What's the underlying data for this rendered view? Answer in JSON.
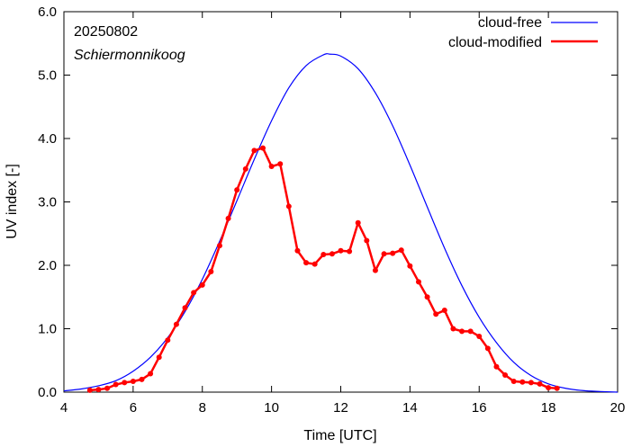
{
  "chart_data": {
    "type": "line",
    "xlabel": "Time  [UTC]",
    "ylabel": "UV index  [-]",
    "xlim": [
      4,
      20
    ],
    "ylim": [
      0,
      6
    ],
    "xticks": [
      4,
      6,
      8,
      10,
      12,
      14,
      16,
      18,
      20
    ],
    "yticks": [
      0,
      1,
      2,
      3,
      4,
      5,
      6
    ],
    "xtick_labels": [
      "4",
      "6",
      "8",
      "10",
      "12",
      "14",
      "16",
      "18",
      "20"
    ],
    "ytick_labels": [
      "0.0",
      "1.0",
      "2.0",
      "3.0",
      "4.0",
      "5.0",
      "6.0"
    ],
    "grid": false,
    "legend_position": "top-right",
    "annotations": {
      "date": "20250802",
      "location": "Schiermonnikoog"
    },
    "series": [
      {
        "name": "cloud-free",
        "color": "#0000ff",
        "marker": false,
        "x": [
          4.0,
          4.5,
          5.0,
          5.5,
          6.0,
          6.5,
          7.0,
          7.5,
          8.0,
          8.5,
          9.0,
          9.5,
          10.0,
          10.5,
          11.0,
          11.5,
          11.7,
          12.0,
          12.5,
          13.0,
          13.5,
          14.0,
          14.5,
          15.0,
          15.5,
          16.0,
          16.5,
          17.0,
          17.5,
          18.0,
          18.5,
          19.0,
          19.5,
          20.0
        ],
        "y": [
          0.02,
          0.05,
          0.1,
          0.18,
          0.33,
          0.55,
          0.86,
          1.27,
          1.78,
          2.38,
          3.02,
          3.67,
          4.28,
          4.8,
          5.15,
          5.32,
          5.33,
          5.3,
          5.1,
          4.72,
          4.2,
          3.58,
          2.92,
          2.27,
          1.68,
          1.18,
          0.78,
          0.47,
          0.26,
          0.13,
          0.06,
          0.025,
          0.01,
          0.0
        ]
      },
      {
        "name": "cloud-modified",
        "color": "#ff0000",
        "marker": true,
        "x": [
          4.75,
          5.0,
          5.25,
          5.5,
          5.75,
          6.0,
          6.25,
          6.5,
          6.75,
          7.0,
          7.25,
          7.5,
          7.75,
          8.0,
          8.25,
          8.5,
          8.75,
          9.0,
          9.25,
          9.5,
          9.75,
          10.0,
          10.25,
          10.5,
          10.75,
          11.0,
          11.25,
          11.5,
          11.75,
          12.0,
          12.25,
          12.5,
          12.75,
          13.0,
          13.25,
          13.5,
          13.75,
          14.0,
          14.25,
          14.5,
          14.75,
          15.0,
          15.25,
          15.5,
          15.75,
          16.0,
          16.25,
          16.5,
          16.75,
          17.0,
          17.25,
          17.5,
          17.75,
          18.0,
          18.25
        ],
        "y": [
          0.03,
          0.04,
          0.06,
          0.12,
          0.15,
          0.17,
          0.2,
          0.29,
          0.55,
          0.82,
          1.07,
          1.33,
          1.57,
          1.69,
          1.9,
          2.31,
          2.74,
          3.19,
          3.52,
          3.81,
          3.85,
          3.56,
          3.6,
          2.93,
          2.23,
          2.04,
          2.02,
          2.17,
          2.18,
          2.23,
          2.22,
          2.67,
          2.39,
          1.92,
          2.18,
          2.19,
          2.24,
          1.99,
          1.74,
          1.5,
          1.23,
          1.29,
          1.0,
          0.96,
          0.96,
          0.88,
          0.69,
          0.4,
          0.27,
          0.17,
          0.16,
          0.15,
          0.13,
          0.07,
          0.06
        ]
      }
    ]
  }
}
